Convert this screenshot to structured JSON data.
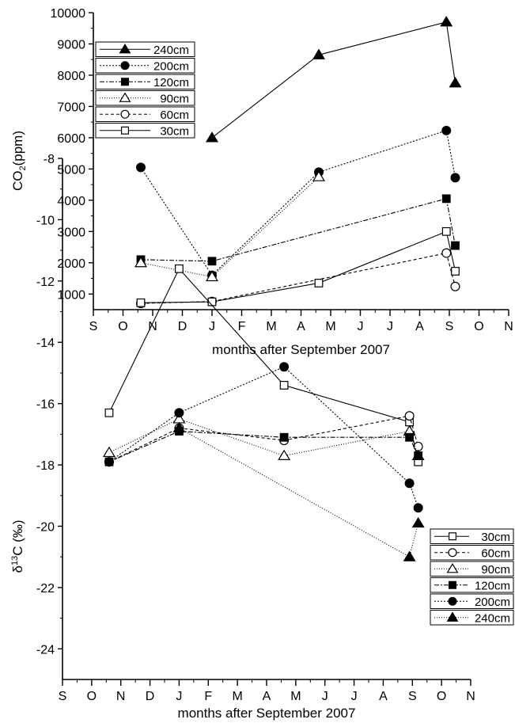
{
  "chart_data": [
    {
      "type": "line",
      "xlabel": "months after September 2007",
      "ylabel_main": "CO",
      "ylabel_sub": "2",
      "ylabel_unit": "(ppm)",
      "xticks": [
        "S",
        "O",
        "N",
        "D",
        "J",
        "F",
        "M",
        "A",
        "M",
        "J",
        "J",
        "A",
        "S",
        "O",
        "N"
      ],
      "xlim": [
        0,
        14
      ],
      "ylim": [
        500,
        10000
      ],
      "yticks": [
        1000,
        2000,
        3000,
        4000,
        5000,
        6000,
        7000,
        8000,
        9000,
        10000
      ],
      "legend_position": "upper-left",
      "series": [
        {
          "name": "240cm",
          "marker": "triangle-filled",
          "dash": "",
          "x": [
            4.0,
            7.6,
            11.9,
            12.2
          ],
          "y": [
            6000,
            8650,
            9700,
            7750
          ]
        },
        {
          "name": "200cm",
          "marker": "circle-filled",
          "dash": "2,2",
          "x": [
            1.6,
            4.0,
            7.6,
            11.9,
            12.2
          ],
          "y": [
            5050,
            1600,
            4900,
            6230,
            4720
          ]
        },
        {
          "name": "120cm",
          "marker": "square-filled",
          "dash": "6,2,2,2",
          "x": [
            1.6,
            4.0,
            11.9,
            12.2
          ],
          "y": [
            2100,
            2050,
            4050,
            2550
          ]
        },
        {
          "name": "90cm",
          "marker": "triangle-open",
          "dash": "1,2",
          "x": [
            1.6,
            4.0,
            7.6
          ],
          "y": [
            2000,
            1550,
            4750
          ]
        },
        {
          "name": "60cm",
          "marker": "circle-open",
          "dash": "4,3",
          "x": [
            1.6,
            4.0,
            11.9,
            12.2
          ],
          "y": [
            700,
            760,
            2310,
            1240
          ]
        },
        {
          "name": "30cm",
          "marker": "square-open",
          "dash": "",
          "x": [
            1.6,
            4.0,
            7.6,
            11.9,
            12.2
          ],
          "y": [
            720,
            750,
            1350,
            3000,
            1730
          ]
        }
      ]
    },
    {
      "type": "line",
      "xlabel": "months after September 2007",
      "ylabel_pre": "δ",
      "ylabel_sup": "13",
      "ylabel_unit": "C (‰)",
      "xticks": [
        "S",
        "O",
        "N",
        "D",
        "J",
        "F",
        "M",
        "A",
        "M",
        "J",
        "J",
        "A",
        "S",
        "O",
        "N"
      ],
      "xlim": [
        0,
        14
      ],
      "ylim": [
        -25,
        -8
      ],
      "yticks": [
        -24,
        -22,
        -20,
        -18,
        -16,
        -14,
        -12,
        -10,
        -8
      ],
      "legend_position": "right",
      "series": [
        {
          "name": "30cm",
          "marker": "square-open",
          "dash": "",
          "x": [
            1.6,
            4.0,
            7.6,
            11.9,
            12.2
          ],
          "y": [
            -16.3,
            -11.6,
            -15.4,
            -16.6,
            -17.9
          ]
        },
        {
          "name": "60cm",
          "marker": "circle-open",
          "dash": "4,3",
          "x": [
            1.6,
            4.0,
            7.6,
            11.9,
            12.2
          ],
          "y": [
            -17.9,
            -16.8,
            -17.2,
            -16.4,
            -17.4
          ]
        },
        {
          "name": "90cm",
          "marker": "triangle-open",
          "dash": "1,2",
          "x": [
            1.6,
            4.0,
            7.6,
            11.9,
            12.2
          ],
          "y": [
            -17.6,
            -16.5,
            -17.7,
            -16.9,
            -17.7
          ]
        },
        {
          "name": "120cm",
          "marker": "square-filled",
          "dash": "6,2,2,2",
          "x": [
            1.6,
            4.0,
            7.6,
            11.9,
            12.2
          ],
          "y": [
            -17.9,
            -16.9,
            -17.1,
            -17.1,
            -17.7
          ]
        },
        {
          "name": "200cm",
          "marker": "circle-filled",
          "dash": "2,2",
          "x": [
            1.6,
            4.0,
            7.6,
            11.9,
            12.2
          ],
          "y": [
            -17.9,
            -16.3,
            -14.8,
            -18.6,
            -19.4
          ]
        },
        {
          "name": "240cm",
          "marker": "triangle-filled",
          "dash": "1,2",
          "x": [
            4.0,
            11.9,
            12.2
          ],
          "y": [
            -16.8,
            -21.0,
            -19.9
          ]
        }
      ]
    }
  ]
}
